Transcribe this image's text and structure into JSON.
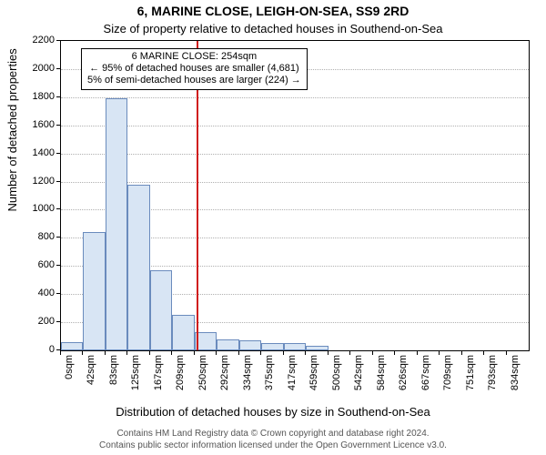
{
  "header": {
    "title": "6, MARINE CLOSE, LEIGH-ON-SEA, SS9 2RD",
    "subtitle": "Size of property relative to detached houses in Southend-on-Sea",
    "title_fontsize": 14,
    "subtitle_fontsize": 13
  },
  "axes": {
    "ylabel": "Number of detached properties",
    "xlabel": "Distribution of detached houses by size in Southend-on-Sea",
    "label_fontsize": 13
  },
  "footer": {
    "line1": "Contains HM Land Registry data © Crown copyright and database right 2024.",
    "line2": "Contains public sector information licensed under the Open Government Licence v3.0.",
    "fontsize": 10
  },
  "chart": {
    "type": "histogram",
    "background_color": "#ffffff",
    "grid_color": "#b0b0b0",
    "axis_color": "#000000",
    "ylim": [
      0,
      2200
    ],
    "ytick_step": 200,
    "xlim_sqm": [
      0,
      875
    ],
    "xtick_step_sqm": 41.7,
    "tick_fontsize": 11,
    "bars": {
      "bin_width_sqm": 41.7,
      "fill_color": "#d8e5f4",
      "border_color": "#6a8bbd",
      "counts": [
        60,
        840,
        1790,
        1180,
        570,
        250,
        130,
        80,
        70,
        50,
        50,
        30,
        0,
        0,
        0,
        0,
        0,
        0,
        0,
        0,
        0
      ]
    },
    "reference_line": {
      "value_sqm": 254,
      "color": "#d01c1c"
    },
    "annotation": {
      "line1": "6 MARINE CLOSE: 254sqm",
      "line2": "← 95% of detached houses are smaller (4,681)",
      "line3": "5% of semi-detached houses are larger (224) →",
      "background_color": "#ffffff",
      "border_color": "#000000",
      "fontsize": 11
    }
  },
  "xtick_labels": [
    "0sqm",
    "42sqm",
    "83sqm",
    "125sqm",
    "167sqm",
    "209sqm",
    "250sqm",
    "292sqm",
    "334sqm",
    "375sqm",
    "417sqm",
    "459sqm",
    "500sqm",
    "542sqm",
    "584sqm",
    "626sqm",
    "667sqm",
    "709sqm",
    "751sqm",
    "793sqm",
    "834sqm"
  ]
}
